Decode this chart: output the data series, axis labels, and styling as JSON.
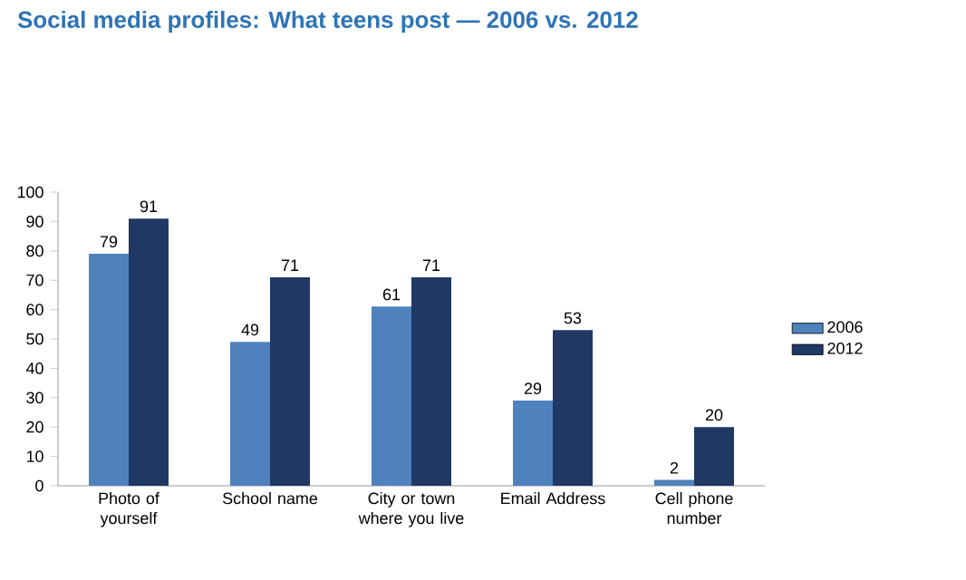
{
  "chart_data": {
    "type": "bar",
    "title": "Social media profiles: What teens post — 2006 vs. 2012",
    "categories": [
      "Photo of yourself",
      "School name",
      "City or town where you live",
      "Email Address",
      "Cell phone number"
    ],
    "series": [
      {
        "name": "2006",
        "color": "#4f81bd",
        "values": [
          79,
          49,
          61,
          29,
          2
        ]
      },
      {
        "name": "2012",
        "color": "#1f3864",
        "values": [
          91,
          71,
          71,
          53,
          20
        ]
      }
    ],
    "ylim": [
      0,
      100
    ],
    "yticks": [
      0,
      10,
      20,
      30,
      40,
      50,
      60,
      70,
      80,
      90,
      100
    ],
    "grid": false,
    "legend": "right",
    "data_labels": true
  }
}
